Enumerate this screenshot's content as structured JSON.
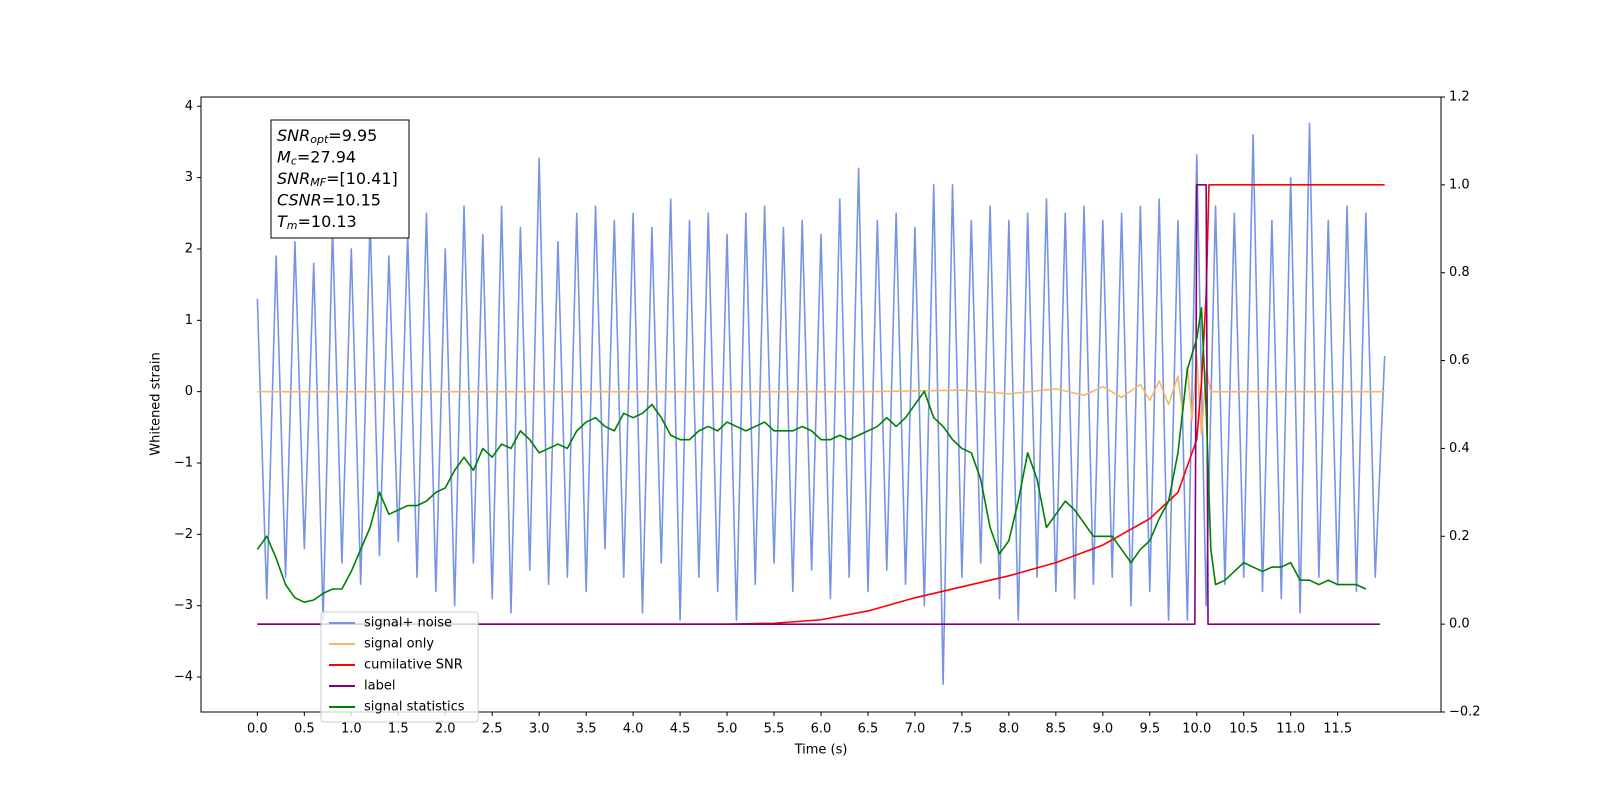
{
  "chart_data": {
    "type": "line",
    "xlabel": "Time (s)",
    "ylabel": "Whitened strain",
    "xlim": [
      -0.6,
      12.6
    ],
    "ylim": [
      -4.49,
      4.13
    ],
    "y2lim": [
      -0.2,
      1.2
    ],
    "xticks": [
      {
        "value": 0,
        "label": "0.0"
      },
      {
        "value": 0.5,
        "label": "0.5"
      },
      {
        "value": 1,
        "label": "1.0"
      },
      {
        "value": 1.5,
        "label": "1.5"
      },
      {
        "value": 2,
        "label": "2.0"
      },
      {
        "value": 2.5,
        "label": "2.5"
      },
      {
        "value": 3,
        "label": "3.0"
      },
      {
        "value": 3.5,
        "label": "3.5"
      },
      {
        "value": 4,
        "label": "4.0"
      },
      {
        "value": 4.5,
        "label": "4.5"
      },
      {
        "value": 5,
        "label": "5.0"
      },
      {
        "value": 5.5,
        "label": "5.5"
      },
      {
        "value": 6,
        "label": "6.0"
      },
      {
        "value": 6.5,
        "label": "6.5"
      },
      {
        "value": 7,
        "label": "7.0"
      },
      {
        "value": 7.5,
        "label": "7.5"
      },
      {
        "value": 8,
        "label": "8.0"
      },
      {
        "value": 8.5,
        "label": "8.5"
      },
      {
        "value": 9,
        "label": "9.0"
      },
      {
        "value": 9.5,
        "label": "9.5"
      },
      {
        "value": 10,
        "label": "10.0"
      },
      {
        "value": 10.5,
        "label": "10.5"
      },
      {
        "value": 11,
        "label": "11.0"
      },
      {
        "value": 11.5,
        "label": "11.5"
      }
    ],
    "yticks": [
      {
        "value": -4,
        "label": "−4"
      },
      {
        "value": -3,
        "label": "−3"
      },
      {
        "value": -2,
        "label": "−2"
      },
      {
        "value": -1,
        "label": "−1"
      },
      0,
      1,
      2,
      3,
      4
    ],
    "y2ticks": [
      {
        "value": -0.2,
        "label": "−0.2"
      },
      {
        "value": 0,
        "label": "0.0"
      },
      {
        "value": 0.2,
        "label": "0.2"
      },
      {
        "value": 0.4,
        "label": "0.4"
      },
      {
        "value": 0.6,
        "label": "0.6"
      },
      {
        "value": 0.8,
        "label": "0.8"
      },
      {
        "value": 1,
        "label": "1.0"
      },
      {
        "value": 1.2,
        "label": "1.2"
      }
    ],
    "annotations": [
      {
        "text": "SNR",
        "sub": "opt",
        "value": "=9.95"
      },
      {
        "text": "M",
        "sub": "c",
        "value": "=27.94"
      },
      {
        "text": "SNR",
        "sub": "MF",
        "value": "=[10.41]"
      },
      {
        "text": "CSNR",
        "sub": "",
        "value": "=10.15"
      },
      {
        "text": "T",
        "sub": "m",
        "value": "=10.13"
      }
    ],
    "series": [
      {
        "name": "signal+ noise",
        "color": "#7793e6",
        "axis": "y",
        "x": [
          0,
          0.1,
          0.2,
          0.3,
          0.4,
          0.5,
          0.6,
          0.7,
          0.8,
          0.9,
          1,
          1.1,
          1.2,
          1.3,
          1.4,
          1.5,
          1.6,
          1.7,
          1.8,
          1.9,
          2,
          2.1,
          2.2,
          2.3,
          2.4,
          2.5,
          2.6,
          2.7,
          2.8,
          2.9,
          3,
          3.1,
          3.2,
          3.3,
          3.4,
          3.5,
          3.6,
          3.7,
          3.8,
          3.9,
          4,
          4.1,
          4.2,
          4.3,
          4.4,
          4.5,
          4.6,
          4.7,
          4.8,
          4.9,
          5,
          5.1,
          5.2,
          5.3,
          5.4,
          5.5,
          5.6,
          5.7,
          5.8,
          5.9,
          6,
          6.1,
          6.2,
          6.3,
          6.4,
          6.5,
          6.6,
          6.7,
          6.8,
          6.9,
          7,
          7.1,
          7.2,
          7.3,
          7.4,
          7.5,
          7.6,
          7.7,
          7.8,
          7.9,
          8,
          8.1,
          8.2,
          8.3,
          8.4,
          8.5,
          8.6,
          8.7,
          8.8,
          8.9,
          9,
          9.1,
          9.2,
          9.3,
          9.4,
          9.5,
          9.6,
          9.7,
          9.8,
          9.9,
          10,
          10.1,
          10.2,
          10.3,
          10.4,
          10.5,
          10.6,
          10.7,
          10.8,
          10.9,
          11,
          11.1,
          11.2,
          11.3,
          11.4,
          11.5,
          11.6,
          11.7,
          11.8,
          11.9,
          12
        ],
        "values": [
          1.3,
          -2.9,
          1.9,
          -2.6,
          2.1,
          -2.2,
          1.8,
          -3.2,
          2.3,
          -2.4,
          2.0,
          -2.7,
          2.4,
          -2.3,
          1.9,
          -2.1,
          2.2,
          -2.6,
          2.5,
          -2.8,
          2.0,
          -3.0,
          2.6,
          -2.4,
          2.2,
          -2.9,
          2.6,
          -3.1,
          2.3,
          -2.5,
          3.27,
          -2.7,
          2.1,
          -2.6,
          2.5,
          -2.8,
          2.6,
          -2.2,
          2.4,
          -2.6,
          2.5,
          -3.1,
          2.3,
          -2.4,
          2.7,
          -3.2,
          2.4,
          -2.6,
          2.5,
          -2.8,
          2.2,
          -3.2,
          2.5,
          -2.7,
          2.6,
          -2.4,
          2.3,
          -2.8,
          2.4,
          -2.5,
          2.2,
          -2.9,
          2.7,
          -2.6,
          3.13,
          -2.8,
          2.4,
          -2.5,
          2.5,
          -2.7,
          2.3,
          -3.0,
          2.9,
          -4.1,
          2.9,
          -2.6,
          2.4,
          -2.4,
          2.6,
          -2.9,
          2.4,
          -3.2,
          2.5,
          -2.6,
          2.7,
          -2.8,
          2.5,
          -2.9,
          2.6,
          -2.7,
          2.4,
          -2.6,
          2.5,
          -3.0,
          2.6,
          -2.8,
          2.7,
          -3.2,
          2.4,
          -3.2,
          3.32,
          -3.0,
          2.6,
          -2.7,
          2.5,
          -2.6,
          3.6,
          -2.8,
          2.4,
          -2.9,
          3.0,
          -3.1,
          3.76,
          -2.6,
          2.4,
          -2.7,
          2.6,
          -2.8,
          2.5,
          -2.6,
          0.5
        ]
      },
      {
        "name": "signal only",
        "color": "#f5b963",
        "axis": "y",
        "x": [
          0,
          6.5,
          7.5,
          8.0,
          8.5,
          8.8,
          9.0,
          9.2,
          9.4,
          9.5,
          9.6,
          9.7,
          9.8,
          9.85,
          9.9,
          9.95,
          10.0,
          10.05,
          10.1,
          10.15,
          12.0
        ],
        "values": [
          0,
          0,
          0.02,
          -0.03,
          0.04,
          -0.05,
          0.07,
          -0.08,
          0.1,
          -0.12,
          0.15,
          -0.18,
          0.22,
          -0.3,
          0.35,
          -0.4,
          0.5,
          -0.6,
          0.3,
          0,
          0
        ]
      },
      {
        "name": "cumilative SNR",
        "color": "#ff0000",
        "axis": "y2",
        "x": [
          0,
          5.0,
          5.5,
          6.0,
          6.5,
          7.0,
          7.5,
          8.0,
          8.5,
          9.0,
          9.5,
          9.8,
          10.0,
          10.05,
          10.1,
          10.13,
          12.0
        ],
        "values": [
          0,
          0,
          0.002,
          0.01,
          0.03,
          0.06,
          0.085,
          0.11,
          0.14,
          0.18,
          0.24,
          0.3,
          0.42,
          0.55,
          0.75,
          1.0,
          1.0
        ]
      },
      {
        "name": "label",
        "color": "#800080",
        "axis": "y2",
        "x": [
          0,
          9.98,
          10.0,
          10.1,
          10.12,
          11.95
        ],
        "values": [
          0,
          0,
          1,
          1,
          0,
          0
        ]
      },
      {
        "name": "signal statistics",
        "color": "#008000",
        "axis": "y2",
        "x": [
          0,
          0.1,
          0.2,
          0.3,
          0.4,
          0.5,
          0.6,
          0.7,
          0.8,
          0.9,
          1,
          1.1,
          1.2,
          1.3,
          1.4,
          1.5,
          1.6,
          1.7,
          1.8,
          1.9,
          2,
          2.1,
          2.2,
          2.3,
          2.4,
          2.5,
          2.6,
          2.7,
          2.8,
          2.9,
          3,
          3.1,
          3.2,
          3.3,
          3.4,
          3.5,
          3.6,
          3.7,
          3.8,
          3.9,
          4,
          4.1,
          4.2,
          4.3,
          4.4,
          4.5,
          4.6,
          4.7,
          4.8,
          4.9,
          5,
          5.1,
          5.2,
          5.3,
          5.4,
          5.5,
          5.6,
          5.7,
          5.8,
          5.9,
          6,
          6.1,
          6.2,
          6.3,
          6.4,
          6.5,
          6.6,
          6.7,
          6.8,
          6.9,
          7,
          7.1,
          7.2,
          7.3,
          7.4,
          7.5,
          7.6,
          7.7,
          7.8,
          7.9,
          8,
          8.1,
          8.2,
          8.3,
          8.4,
          8.5,
          8.6,
          8.7,
          8.8,
          8.9,
          9,
          9.1,
          9.2,
          9.3,
          9.4,
          9.5,
          9.6,
          9.7,
          9.8,
          9.9,
          10,
          10.05,
          10.1,
          10.15,
          10.2,
          10.3,
          10.4,
          10.5,
          10.6,
          10.7,
          10.8,
          10.9,
          11,
          11.1,
          11.2,
          11.3,
          11.4,
          11.5,
          11.6,
          11.7,
          11.8
        ],
        "values": [
          0.17,
          0.2,
          0.15,
          0.09,
          0.06,
          0.05,
          0.055,
          0.07,
          0.08,
          0.08,
          0.12,
          0.17,
          0.22,
          0.3,
          0.25,
          0.26,
          0.27,
          0.27,
          0.28,
          0.3,
          0.31,
          0.35,
          0.38,
          0.35,
          0.4,
          0.38,
          0.41,
          0.4,
          0.44,
          0.42,
          0.39,
          0.4,
          0.41,
          0.4,
          0.44,
          0.46,
          0.47,
          0.45,
          0.44,
          0.48,
          0.47,
          0.48,
          0.5,
          0.47,
          0.43,
          0.42,
          0.42,
          0.44,
          0.45,
          0.44,
          0.46,
          0.45,
          0.44,
          0.45,
          0.46,
          0.44,
          0.44,
          0.44,
          0.45,
          0.44,
          0.42,
          0.42,
          0.43,
          0.42,
          0.43,
          0.44,
          0.45,
          0.47,
          0.45,
          0.47,
          0.5,
          0.53,
          0.47,
          0.45,
          0.42,
          0.4,
          0.39,
          0.33,
          0.22,
          0.16,
          0.19,
          0.28,
          0.39,
          0.33,
          0.22,
          0.25,
          0.28,
          0.26,
          0.23,
          0.2,
          0.2,
          0.2,
          0.17,
          0.14,
          0.17,
          0.19,
          0.24,
          0.28,
          0.39,
          0.58,
          0.65,
          0.72,
          0.49,
          0.17,
          0.09,
          0.1,
          0.12,
          0.14,
          0.13,
          0.12,
          0.13,
          0.13,
          0.14,
          0.1,
          0.1,
          0.09,
          0.1,
          0.09,
          0.09,
          0.09,
          0.08
        ]
      }
    ]
  }
}
